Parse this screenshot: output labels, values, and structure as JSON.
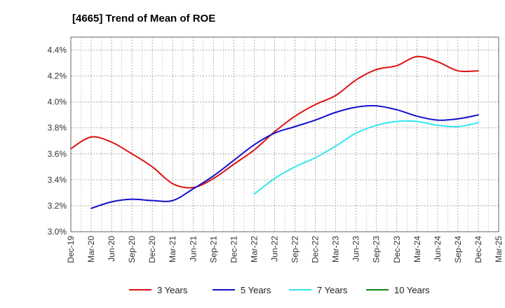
{
  "chart_data": {
    "type": "line",
    "title": "[4665]  Trend of Mean of ROE",
    "xlabel": "",
    "ylabel": "",
    "ylim": [
      3.0,
      4.5
    ],
    "yticks": [
      "3.0%",
      "3.2%",
      "3.4%",
      "3.6%",
      "3.8%",
      "4.0%",
      "4.2%",
      "4.4%"
    ],
    "categories": [
      "Dec-19",
      "Mar-20",
      "Jun-20",
      "Sep-20",
      "Dec-20",
      "Mar-21",
      "Jun-21",
      "Sep-21",
      "Dec-21",
      "Mar-22",
      "Jun-22",
      "Sep-22",
      "Dec-22",
      "Mar-23",
      "Jun-23",
      "Sep-23",
      "Dec-23",
      "Mar-24",
      "Jun-24",
      "Sep-24",
      "Dec-24",
      "Mar-25"
    ],
    "grid": true,
    "legend_position": "bottom",
    "series": [
      {
        "name": "3 Years",
        "color": "#dd1111",
        "values": [
          3.64,
          3.73,
          3.69,
          3.6,
          3.5,
          3.37,
          3.34,
          3.41,
          3.52,
          3.63,
          3.77,
          3.89,
          3.98,
          4.05,
          4.17,
          4.25,
          4.28,
          4.35,
          4.31,
          4.24,
          4.24,
          null
        ]
      },
      {
        "name": "5 Years",
        "color": "#1111cc",
        "values": [
          null,
          3.18,
          3.23,
          3.25,
          3.24,
          3.24,
          3.33,
          3.43,
          3.55,
          3.67,
          3.76,
          3.81,
          3.86,
          3.92,
          3.96,
          3.97,
          3.94,
          3.89,
          3.86,
          3.87,
          3.9,
          null
        ]
      },
      {
        "name": "7 Years",
        "color": "#33e6f0",
        "values": [
          null,
          null,
          null,
          null,
          null,
          null,
          null,
          null,
          null,
          3.29,
          3.41,
          3.5,
          3.57,
          3.66,
          3.76,
          3.82,
          3.85,
          3.85,
          3.82,
          3.81,
          3.84,
          null
        ]
      },
      {
        "name": "10 Years",
        "color": "#118811",
        "values": [
          null,
          null,
          null,
          null,
          null,
          null,
          null,
          null,
          null,
          null,
          null,
          null,
          null,
          null,
          null,
          null,
          null,
          null,
          null,
          null,
          null,
          null
        ]
      }
    ]
  }
}
